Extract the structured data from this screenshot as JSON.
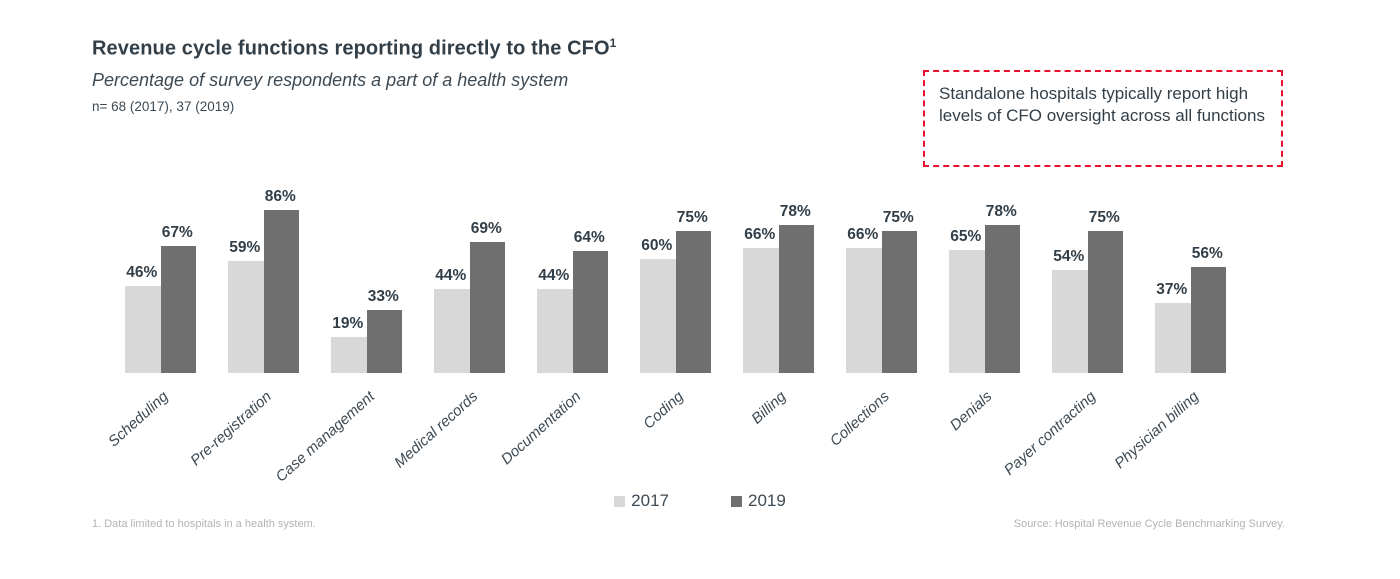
{
  "header": {
    "title": "Revenue cycle functions reporting directly to the CFO",
    "title_superscript": "1",
    "subtitle": "Percentage of survey respondents a part of a health system",
    "sample_note": "n= 68 (2017), 37 (2019)"
  },
  "callout": {
    "text": "Standalone hospitals typically report high levels of CFO oversight across all functions",
    "border_color": "#e8112d"
  },
  "chart_data": {
    "type": "bar",
    "title": "Revenue cycle functions reporting directly to the CFO",
    "subtitle": "Percentage of survey respondents a part of a health system",
    "categories": [
      "Scheduling",
      "Pre-registration",
      "Case management",
      "Medical records",
      "Documentation",
      "Coding",
      "Billing",
      "Collections",
      "Denials",
      "Payer contracting",
      "Physician billing"
    ],
    "series": [
      {
        "name": "2017",
        "color": "#d8d8d8",
        "values": [
          46,
          59,
          19,
          44,
          44,
          60,
          66,
          66,
          65,
          54,
          37
        ]
      },
      {
        "name": "2019",
        "color": "#6f6f6f",
        "values": [
          67,
          86,
          33,
          69,
          64,
          75,
          78,
          75,
          78,
          75,
          56
        ]
      }
    ],
    "value_suffix": "%",
    "ylim": [
      0,
      100
    ],
    "grid": false,
    "axis_lines": false,
    "data_labels": true,
    "legend_position": "bottom-center",
    "category_label_rotation_deg": -42
  },
  "legend": {
    "items": [
      {
        "label": "2017",
        "color": "#d8d8d8"
      },
      {
        "label": "2019",
        "color": "#6f6f6f"
      }
    ]
  },
  "footer": {
    "footnote": "1.  Data limited to hospitals in a health system.",
    "source": "Source: Hospital Revenue Cycle Benchmarking Survey."
  },
  "colors": {
    "text": "#333f48",
    "accent_red": "#e8112d",
    "footnote_gray": "#b3b3b3"
  }
}
